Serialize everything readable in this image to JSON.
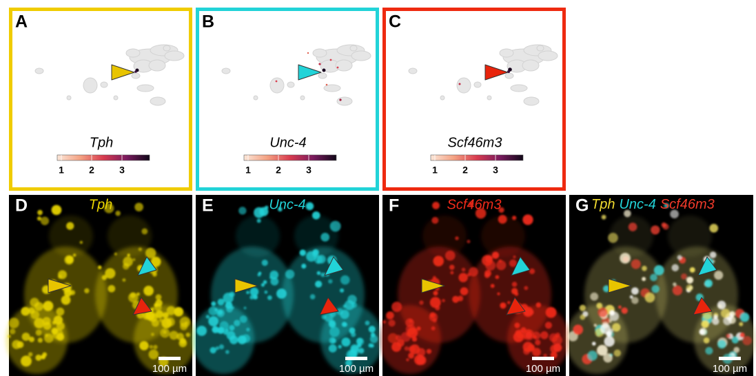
{
  "umap_panels": [
    {
      "letter": "A",
      "gene": "Tph",
      "border_color": "#f0cc00",
      "arrow_color": "#e8c400",
      "colorbar_ticks": [
        1,
        2,
        3
      ]
    },
    {
      "letter": "B",
      "gene": "Unc-4",
      "border_color": "#22d3d8",
      "arrow_color": "#22d3d8",
      "colorbar_ticks": [
        1,
        2,
        3
      ]
    },
    {
      "letter": "C",
      "gene": "Scf46m3",
      "border_color": "#ee2a10",
      "arrow_color": "#e8240c",
      "colorbar_ticks": [
        1,
        2,
        3
      ]
    }
  ],
  "image_panels": [
    {
      "letter": "D",
      "genes": [
        {
          "name": "Tph",
          "color": "#e8d400"
        }
      ],
      "scale_bar": "100 µm"
    },
    {
      "letter": "E",
      "genes": [
        {
          "name": "Unc-4",
          "color": "#22d3d8"
        }
      ],
      "scale_bar": "100 µm"
    },
    {
      "letter": "F",
      "genes": [
        {
          "name": "Scf46m3",
          "color": "#f02a1a"
        }
      ],
      "scale_bar": "100 µm"
    },
    {
      "letter": "G",
      "genes": [
        {
          "name": "Tph",
          "color": "#f2dc30"
        },
        {
          "name": "Unc-4",
          "color": "#22d3d8"
        },
        {
          "name": "Scf46m3",
          "color": "#f03a2a"
        }
      ],
      "scale_bar": "100 µm"
    }
  ]
}
